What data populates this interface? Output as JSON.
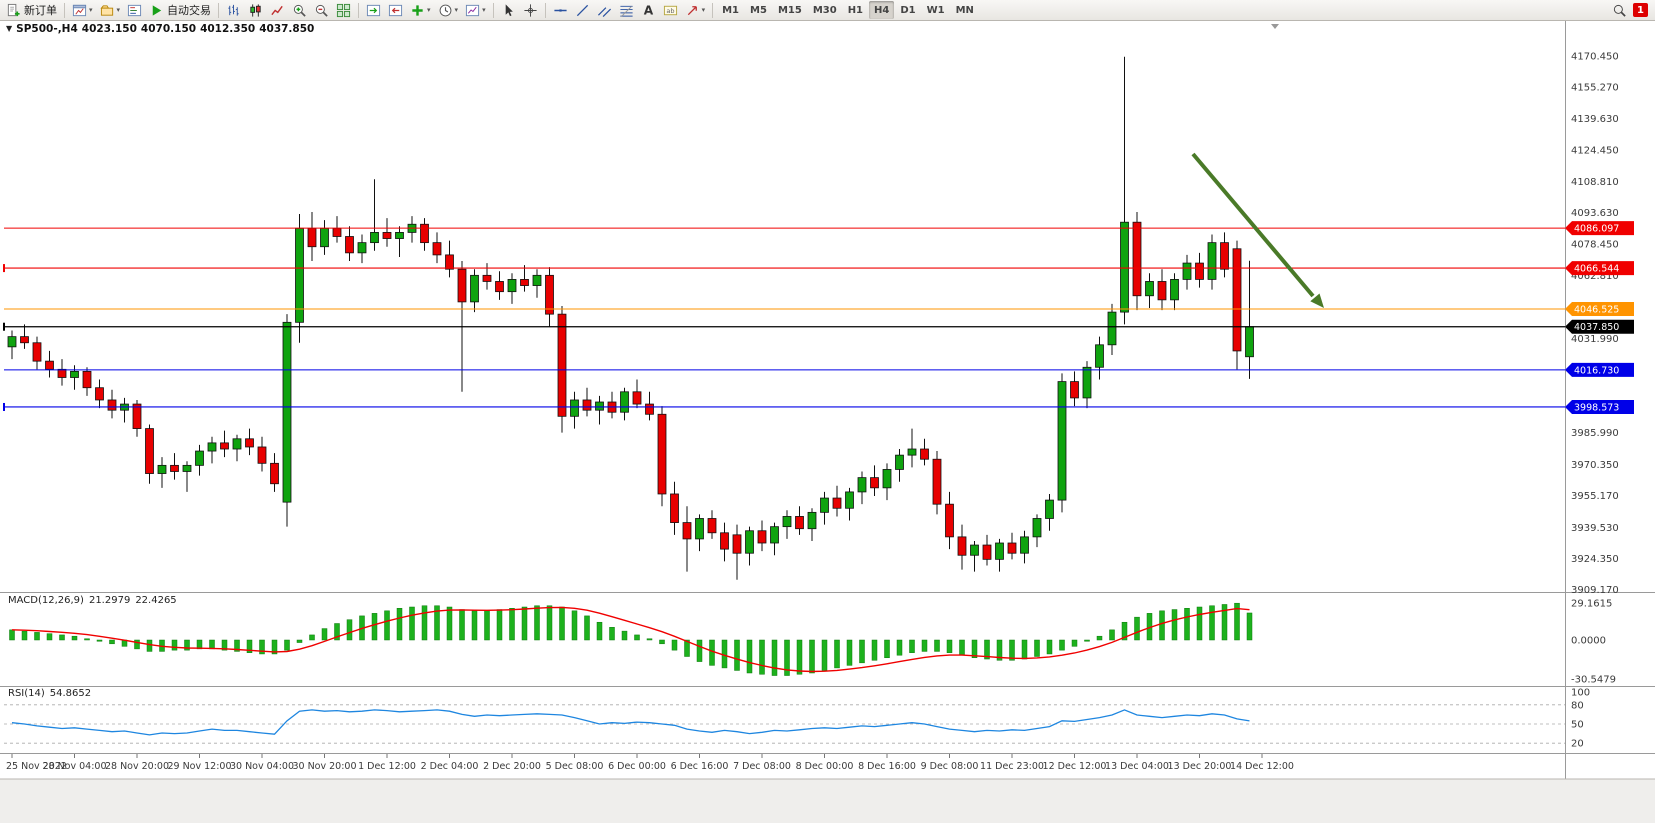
{
  "toolbar": {
    "new_order": {
      "label": "新订单"
    },
    "autotrading": {
      "label": "自动交易"
    },
    "window_icons": [
      "chart-window-icon",
      "profiles-icon",
      "market-watch-icon"
    ],
    "chart_type_icons": [
      "ohlc-bars-icon",
      "candlestick-icon",
      "line-chart-icon"
    ],
    "zoom_icons": [
      "zoom-in-icon",
      "zoom-out-icon"
    ],
    "layout_icons": [
      "tile-windows-icon"
    ],
    "scroll_icons": [
      "auto-scroll-icon",
      "chart-shift-icon"
    ],
    "insert_icons": [
      "indicators-icon",
      "periods-icon",
      "templates-icon"
    ],
    "pointer_icons": [
      "cursor-icon",
      "crosshair-icon"
    ],
    "draw_icons": [
      "horizontal-line-icon",
      "trendline-icon",
      "channel-icon",
      "fibonacci-icon"
    ],
    "text_icons": [
      "text-icon",
      "text-label-icon",
      "arrows-icon"
    ],
    "timeframes": [
      "M1",
      "M5",
      "M15",
      "M30",
      "H1",
      "H4",
      "D1",
      "W1",
      "MN"
    ],
    "active_timeframe": "H4",
    "notification_count": "1"
  },
  "chart": {
    "header": {
      "symbol_period": "SP500-,H4",
      "open": "4023.150",
      "high": "4070.150",
      "low": "4012.350",
      "close": "4037.850"
    },
    "colors": {
      "up": "#0FA30F",
      "down": "#E80000",
      "wick": "#111111",
      "background": "#FFFFFF"
    },
    "price_lines": [
      {
        "label": "4086.097",
        "price": 4086.097,
        "color": "#F00000",
        "marker": false,
        "current": false
      },
      {
        "label": "4066.544",
        "price": 4066.544,
        "color": "#F00000",
        "marker": true,
        "current": false
      },
      {
        "label": "4046.525",
        "price": 4046.525,
        "color": "#FF9400",
        "marker": false,
        "current": false
      },
      {
        "label": "4037.850",
        "price": 4037.85,
        "color": "#000000",
        "marker": true,
        "current": true
      },
      {
        "label": "4016.730",
        "price": 4016.73,
        "color": "#0000E8",
        "marker": false,
        "current": false
      },
      {
        "label": "3998.573",
        "price": 3998.573,
        "color": "#0000E8",
        "marker": true,
        "current": false
      }
    ],
    "price_axis": [
      {
        "t": "4170.450",
        "p": 4170.45
      },
      {
        "t": "4155.270",
        "p": 4155.27
      },
      {
        "t": "4139.630",
        "p": 4139.63
      },
      {
        "t": "4124.450",
        "p": 4124.45
      },
      {
        "t": "4108.810",
        "p": 4108.81
      },
      {
        "t": "4093.630",
        "p": 4093.63
      },
      {
        "t": "4078.450",
        "p": 4078.45
      },
      {
        "t": "4062.810",
        "p": 4062.81
      },
      {
        "t": "4031.990",
        "p": 4031.99
      },
      {
        "t": "3985.990",
        "p": 3985.99
      },
      {
        "t": "3970.350",
        "p": 3970.35
      },
      {
        "t": "3955.170",
        "p": 3955.17
      },
      {
        "t": "3939.530",
        "p": 3939.53
      },
      {
        "t": "3924.350",
        "p": 3924.35
      },
      {
        "t": "3909.170",
        "p": 3909.17
      }
    ],
    "time_axis": [
      "25 Nov 2022",
      "28 Nov 04:00",
      "28 Nov 20:00",
      "29 Nov 12:00",
      "30 Nov 04:00",
      "30 Nov 20:00",
      "1 Dec 12:00",
      "2 Dec 04:00",
      "2 Dec 20:00",
      "5 Dec 08:00",
      "6 Dec 00:00",
      "6 Dec 16:00",
      "7 Dec 08:00",
      "8 Dec 00:00",
      "8 Dec 16:00",
      "9 Dec 08:00",
      "11 Dec 23:00",
      "12 Dec 12:00",
      "13 Dec 04:00",
      "13 Dec 20:00",
      "14 Dec 12:00"
    ],
    "annotation_arrow": {
      "color": "#4A7A28",
      "direction": "down-right"
    },
    "candles": [
      [
        4028,
        4036,
        4022,
        4033
      ],
      [
        4033,
        4039,
        4027,
        4030
      ],
      [
        4030,
        4033,
        4017,
        4021
      ],
      [
        4021,
        4026,
        4013,
        4017
      ],
      [
        4017,
        4022,
        4009,
        4013
      ],
      [
        4013,
        4019,
        4007,
        4016
      ],
      [
        4016,
        4018,
        4004,
        4008
      ],
      [
        4008,
        4012,
        3998,
        4002
      ],
      [
        4002,
        4007,
        3993,
        3997
      ],
      [
        3997,
        4003,
        3991,
        4000
      ],
      [
        4000,
        4002,
        3984,
        3988
      ],
      [
        3988,
        3990,
        3961,
        3966
      ],
      [
        3966,
        3974,
        3959,
        3970
      ],
      [
        3970,
        3976,
        3963,
        3967
      ],
      [
        3967,
        3972,
        3957,
        3970
      ],
      [
        3970,
        3980,
        3965,
        3977
      ],
      [
        3977,
        3984,
        3971,
        3981
      ],
      [
        3981,
        3987,
        3974,
        3978
      ],
      [
        3978,
        3985,
        3972,
        3983
      ],
      [
        3983,
        3988,
        3975,
        3979
      ],
      [
        3979,
        3984,
        3967,
        3971
      ],
      [
        3971,
        3976,
        3957,
        3961
      ],
      [
        3952,
        4044,
        3940,
        4040
      ],
      [
        4040,
        4093,
        4030,
        4086
      ],
      [
        4086,
        4094,
        4070,
        4077
      ],
      [
        4077,
        4090,
        4073,
        4086
      ],
      [
        4086,
        4092,
        4079,
        4082
      ],
      [
        4082,
        4087,
        4070,
        4074
      ],
      [
        4074,
        4083,
        4069,
        4079
      ],
      [
        4079,
        4110,
        4075,
        4084
      ],
      [
        4084,
        4091,
        4077,
        4081
      ],
      [
        4081,
        4087,
        4072,
        4084
      ],
      [
        4084,
        4092,
        4079,
        4088
      ],
      [
        4088,
        4091,
        4075,
        4079
      ],
      [
        4079,
        4084,
        4069,
        4073
      ],
      [
        4073,
        4080,
        4062,
        4066
      ],
      [
        4066,
        4070,
        4006,
        4050
      ],
      [
        4050,
        4066,
        4045,
        4063
      ],
      [
        4063,
        4069,
        4056,
        4060
      ],
      [
        4060,
        4065,
        4051,
        4055
      ],
      [
        4055,
        4064,
        4049,
        4061
      ],
      [
        4061,
        4068,
        4055,
        4058
      ],
      [
        4058,
        4066,
        4052,
        4063
      ],
      [
        4063,
        4067,
        4038,
        4044
      ],
      [
        4044,
        4048,
        3986,
        3994
      ],
      [
        3994,
        4006,
        3988,
        4002
      ],
      [
        4002,
        4008,
        3994,
        3997
      ],
      [
        3997,
        4004,
        3990,
        4001
      ],
      [
        4001,
        4006,
        3993,
        3996
      ],
      [
        3996,
        4008,
        3992,
        4006
      ],
      [
        4006,
        4012,
        3998,
        4000
      ],
      [
        4000,
        4006,
        3992,
        3995
      ],
      [
        3995,
        3999,
        3950,
        3956
      ],
      [
        3956,
        3962,
        3936,
        3942
      ],
      [
        3942,
        3950,
        3918,
        3934
      ],
      [
        3934,
        3946,
        3928,
        3944
      ],
      [
        3944,
        3948,
        3934,
        3937
      ],
      [
        3937,
        3942,
        3923,
        3929
      ],
      [
        3936,
        3941,
        3914,
        3927
      ],
      [
        3927,
        3940,
        3921,
        3938
      ],
      [
        3938,
        3943,
        3928,
        3932
      ],
      [
        3932,
        3942,
        3926,
        3940
      ],
      [
        3940,
        3948,
        3934,
        3945
      ],
      [
        3945,
        3950,
        3936,
        3939
      ],
      [
        3939,
        3949,
        3933,
        3947
      ],
      [
        3947,
        3957,
        3941,
        3954
      ],
      [
        3954,
        3960,
        3945,
        3949
      ],
      [
        3949,
        3959,
        3943,
        3957
      ],
      [
        3957,
        3967,
        3951,
        3964
      ],
      [
        3964,
        3970,
        3955,
        3959
      ],
      [
        3959,
        3971,
        3953,
        3968
      ],
      [
        3968,
        3978,
        3962,
        3975
      ],
      [
        3975,
        3988,
        3969,
        3978
      ],
      [
        3978,
        3983,
        3970,
        3973
      ],
      [
        3973,
        3977,
        3946,
        3951
      ],
      [
        3951,
        3957,
        3929,
        3935
      ],
      [
        3935,
        3941,
        3919,
        3926
      ],
      [
        3926,
        3933,
        3918,
        3931
      ],
      [
        3931,
        3936,
        3921,
        3924
      ],
      [
        3924,
        3934,
        3918,
        3932
      ],
      [
        3932,
        3937,
        3924,
        3927
      ],
      [
        3927,
        3938,
        3922,
        3935
      ],
      [
        3935,
        3946,
        3930,
        3944
      ],
      [
        3944,
        3956,
        3938,
        3953
      ],
      [
        3953,
        4015,
        3947,
        4011
      ],
      [
        4011,
        4016,
        3999,
        4003
      ],
      [
        4003,
        4021,
        3998,
        4018
      ],
      [
        4018,
        4033,
        4012,
        4029
      ],
      [
        4029,
        4049,
        4024,
        4045
      ],
      [
        4045,
        4170,
        4039,
        4089
      ],
      [
        4089,
        4094,
        4046,
        4053
      ],
      [
        4053,
        4064,
        4047,
        4060
      ],
      [
        4060,
        4066,
        4046,
        4051
      ],
      [
        4051,
        4064,
        4046,
        4061
      ],
      [
        4061,
        4073,
        4056,
        4069
      ],
      [
        4069,
        4074,
        4057,
        4061
      ],
      [
        4061,
        4083,
        4056,
        4079
      ],
      [
        4079,
        4084,
        4062,
        4066
      ],
      [
        4076,
        4080,
        4017,
        4026
      ],
      [
        4023.15,
        4070.15,
        4012.35,
        4037.85
      ]
    ]
  },
  "macd": {
    "name": "MACD(12,26,9)",
    "value_main": "21.2979",
    "value_signal": "22.4265",
    "axis_labels": [
      "29.1615",
      "0.0000",
      "-30.5479"
    ],
    "colors": {
      "histogram": "#1DB11D",
      "signal": "#F00000"
    },
    "histogram": [
      8,
      7,
      6,
      5,
      4,
      3,
      1,
      -1,
      -3,
      -5,
      -7,
      -9,
      -9,
      -8,
      -8,
      -7,
      -7,
      -8,
      -9,
      -10,
      -11,
      -11,
      -8,
      -2,
      4,
      9,
      13,
      16,
      19,
      21,
      23,
      25,
      26,
      27,
      27,
      26,
      24,
      23,
      23,
      24,
      25,
      26,
      27,
      27,
      26,
      23,
      19,
      14,
      10,
      7,
      4,
      1,
      -3,
      -8,
      -13,
      -17,
      -20,
      -22,
      -24,
      -26,
      -27,
      -28,
      -28,
      -27,
      -26,
      -24,
      -22,
      -20,
      -18,
      -16,
      -14,
      -12,
      -10,
      -9,
      -9,
      -10,
      -12,
      -14,
      -15,
      -16,
      -16,
      -15,
      -13,
      -11,
      -8,
      -5,
      -1,
      3,
      8,
      14,
      18,
      21,
      23,
      24,
      25,
      26,
      27,
      28,
      29,
      21.3
    ]
  },
  "rsi": {
    "name": "RSI(14)",
    "value": "54.8652",
    "axis_labels": [
      "100",
      "80",
      "50",
      "20"
    ],
    "levels": [
      80,
      50,
      20
    ],
    "color": "#1E86E0",
    "values": [
      52,
      50,
      47,
      45,
      43,
      44,
      42,
      40,
      38,
      39,
      36,
      33,
      36,
      35,
      36,
      39,
      42,
      40,
      40,
      38,
      36,
      34,
      55,
      70,
      72,
      70,
      71,
      69,
      70,
      72,
      71,
      69,
      70,
      71,
      72,
      70,
      65,
      62,
      64,
      63,
      64,
      65,
      66,
      65,
      64,
      60,
      55,
      50,
      52,
      51,
      53,
      52,
      50,
      48,
      42,
      39,
      37,
      40,
      38,
      35,
      37,
      40,
      39,
      41,
      43,
      44,
      43,
      45,
      47,
      46,
      48,
      50,
      52,
      50,
      46,
      42,
      40,
      38,
      40,
      39,
      41,
      40,
      43,
      46,
      55,
      54,
      57,
      60,
      64,
      72,
      64,
      62,
      60,
      62,
      64,
      63,
      66,
      64,
      58,
      54.9
    ]
  }
}
